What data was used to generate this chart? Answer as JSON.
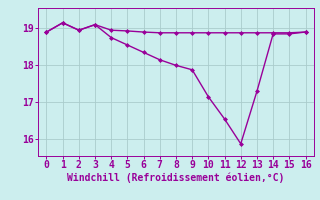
{
  "xlabel": "Windchill (Refroidissement éolien,°C)",
  "line1_x": [
    0,
    1,
    2,
    3,
    4,
    5,
    6,
    7,
    8,
    9,
    10,
    11,
    12,
    13,
    14,
    15,
    16
  ],
  "line1_y": [
    18.9,
    19.15,
    18.95,
    19.1,
    18.95,
    18.93,
    18.9,
    18.88,
    18.88,
    18.88,
    18.88,
    18.88,
    18.88,
    18.88,
    18.88,
    18.88,
    18.9
  ],
  "line2_x": [
    0,
    1,
    2,
    3,
    4,
    5,
    6,
    7,
    8,
    9,
    10,
    11,
    12,
    13,
    14,
    15,
    16
  ],
  "line2_y": [
    18.9,
    19.15,
    18.95,
    19.1,
    18.75,
    18.55,
    18.35,
    18.15,
    18.0,
    17.88,
    17.15,
    16.55,
    15.88,
    17.3,
    18.85,
    18.85,
    18.9
  ],
  "line_color": "#990099",
  "bg_color": "#cceeee",
  "grid_color": "#aacccc",
  "xlim": [
    -0.5,
    16.5
  ],
  "ylim": [
    15.55,
    19.55
  ],
  "yticks": [
    16,
    17,
    18,
    19
  ],
  "xticks": [
    0,
    1,
    2,
    3,
    4,
    5,
    6,
    7,
    8,
    9,
    10,
    11,
    12,
    13,
    14,
    15,
    16
  ],
  "marker": "D",
  "markersize": 2.0,
  "linewidth": 1.0,
  "tick_fontsize": 7,
  "xlabel_fontsize": 7
}
